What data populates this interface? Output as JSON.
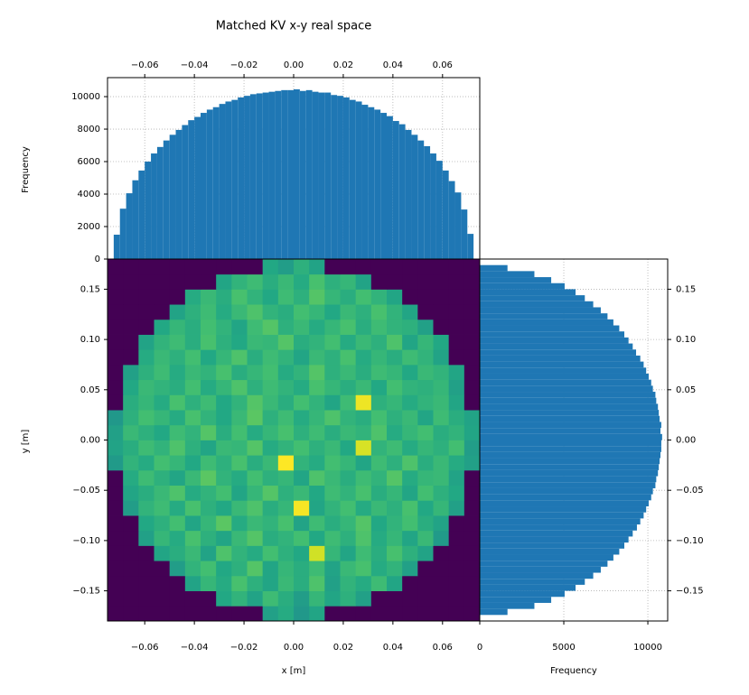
{
  "chart_data": [
    {
      "type": "histogram",
      "orientation": "vertical",
      "title": "Matched KV x-y real space",
      "ylabel": "Frequency",
      "color": "#1f77b4",
      "grid": true,
      "xaxis": "top",
      "yaxis": "left",
      "bins": [
        -0.075,
        -0.0725,
        -0.07,
        -0.0675,
        -0.065,
        -0.0625,
        -0.06,
        -0.0575,
        -0.055,
        -0.0525,
        -0.05,
        -0.0475,
        -0.045,
        -0.0425,
        -0.04,
        -0.0375,
        -0.035,
        -0.0325,
        -0.03,
        -0.0275,
        -0.025,
        -0.0225,
        -0.02,
        -0.0175,
        -0.015,
        -0.0125,
        -0.01,
        -0.0075,
        -0.005,
        -0.0025,
        0,
        0.0025,
        0.005,
        0.0075,
        0.01,
        0.0125,
        0.015,
        0.0175,
        0.02,
        0.0225,
        0.025,
        0.0275,
        0.03,
        0.0325,
        0.035,
        0.0375,
        0.04,
        0.0425,
        0.045,
        0.0475,
        0.05,
        0.0525,
        0.055,
        0.0575,
        0.06,
        0.0625,
        0.065,
        0.0675,
        0.07,
        0.0725,
        0.075
      ],
      "counts": [
        0,
        1500,
        3100,
        4050,
        4850,
        5450,
        6000,
        6500,
        6900,
        7300,
        7650,
        7950,
        8250,
        8550,
        8750,
        9000,
        9200,
        9350,
        9550,
        9700,
        9800,
        9950,
        10050,
        10150,
        10200,
        10250,
        10300,
        10350,
        10400,
        10400,
        10450,
        10350,
        10400,
        10300,
        10250,
        10250,
        10100,
        10050,
        9950,
        9800,
        9700,
        9500,
        9350,
        9200,
        9000,
        8800,
        8500,
        8300,
        7950,
        7650,
        7300,
        6950,
        6500,
        6050,
        5450,
        4800,
        4100,
        3050,
        1550,
        0
      ],
      "xlim": [
        -0.075,
        0.075
      ],
      "xticks": [
        {
          "value": -0.06,
          "label": "−0.06"
        },
        {
          "value": -0.04,
          "label": "−0.04"
        },
        {
          "value": -0.02,
          "label": "−0.02"
        },
        {
          "value": 0,
          "label": "0.00"
        },
        0.02,
        0.04,
        0.06
      ],
      "ylim": [
        0,
        11170
      ],
      "yticks": [
        0,
        2000,
        4000,
        6000,
        8000,
        10000
      ]
    },
    {
      "type": "heatmap",
      "colormap": "viridis",
      "xlabel": "x [m]",
      "ylabel": "y [m]",
      "xaxis": "bottom",
      "yaxis": "left",
      "xlim": [
        -0.075,
        0.075
      ],
      "xticks": [
        {
          "value": -0.06,
          "label": "−0.06"
        },
        {
          "value": -0.04,
          "label": "−0.04"
        },
        {
          "value": -0.02,
          "label": "−0.02"
        },
        {
          "value": 0,
          "label": "0.00"
        },
        0.02,
        0.04,
        0.06
      ],
      "ylim": [
        -0.18,
        0.18
      ],
      "yticks": [
        {
          "value": -0.15,
          "label": "−0.15"
        },
        {
          "value": -0.1,
          "label": "−0.10"
        },
        {
          "value": -0.05,
          "label": "−0.05"
        },
        {
          "value": 0,
          "label": "0.00"
        },
        0.05,
        {
          "value": 0.1,
          "label": "0.10"
        },
        0.15
      ],
      "z": [
        [
          0,
          0,
          0,
          0,
          0,
          0,
          0,
          0,
          0,
          0,
          48,
          52,
          45,
          50,
          0,
          0,
          0,
          0,
          0,
          0,
          0,
          0,
          0,
          0
        ],
        [
          0,
          0,
          0,
          0,
          0,
          0,
          0,
          51,
          55,
          49,
          58,
          53,
          47,
          56,
          50,
          54,
          48,
          0,
          0,
          0,
          0,
          0,
          0,
          0
        ],
        [
          0,
          0,
          0,
          0,
          0,
          49,
          56,
          52,
          60,
          54,
          50,
          57,
          53,
          61,
          48,
          55,
          52,
          58,
          50,
          0,
          0,
          0,
          0,
          0
        ],
        [
          0,
          0,
          0,
          0,
          47,
          55,
          59,
          51,
          54,
          62,
          50,
          56,
          53,
          58,
          49,
          57,
          60,
          52,
          55,
          48,
          0,
          0,
          0,
          0
        ],
        [
          0,
          0,
          0,
          50,
          53,
          57,
          49,
          61,
          55,
          52,
          59,
          54,
          51,
          79,
          56,
          50,
          58,
          53,
          60,
          54,
          49,
          0,
          0,
          0
        ],
        [
          0,
          0,
          48,
          56,
          52,
          60,
          54,
          50,
          57,
          62,
          53,
          55,
          59,
          51,
          58,
          54,
          61,
          52,
          56,
          50,
          57,
          46,
          0,
          0
        ],
        [
          0,
          0,
          51,
          54,
          59,
          50,
          56,
          63,
          52,
          57,
          55,
          60,
          49,
          58,
          53,
          56,
          62,
          51,
          55,
          59,
          53,
          49,
          0,
          0
        ],
        [
          0,
          47,
          55,
          58,
          52,
          60,
          54,
          51,
          57,
          61,
          53,
          56,
          84,
          50,
          55,
          59,
          52,
          57,
          54,
          60,
          51,
          56,
          48,
          0
        ],
        [
          0,
          50,
          53,
          57,
          61,
          52,
          55,
          59,
          50,
          56,
          62,
          54,
          57,
          51,
          58,
          55,
          60,
          53,
          56,
          50,
          59,
          54,
          51,
          0
        ],
        [
          0,
          52,
          58,
          54,
          50,
          57,
          63,
          55,
          52,
          59,
          54,
          56,
          50,
          61,
          57,
          53,
          58,
          55,
          62,
          52,
          56,
          57,
          49,
          0
        ],
        [
          46,
          55,
          52,
          59,
          56,
          51,
          58,
          54,
          60,
          53,
          57,
          85,
          55,
          52,
          59,
          56,
          50,
          58,
          54,
          61,
          53,
          57,
          52,
          48
        ],
        [
          49,
          53,
          58,
          55,
          61,
          54,
          50,
          57,
          56,
          62,
          52,
          55,
          59,
          54,
          57,
          51,
          80,
          55,
          58,
          52,
          56,
          54,
          59,
          47
        ],
        [
          48,
          57,
          54,
          51,
          58,
          55,
          62,
          53,
          59,
          52,
          56,
          60,
          54,
          58,
          53,
          57,
          55,
          61,
          52,
          56,
          59,
          53,
          55,
          50
        ],
        [
          45,
          54,
          59,
          56,
          52,
          60,
          55,
          51,
          57,
          63,
          54,
          58,
          52,
          56,
          61,
          55,
          53,
          59,
          54,
          57,
          50,
          58,
          53,
          49
        ],
        [
          0,
          53,
          56,
          52,
          60,
          54,
          58,
          51,
          55,
          62,
          57,
          53,
          59,
          55,
          50,
          58,
          83,
          54,
          56,
          52,
          55,
          57,
          50,
          0
        ],
        [
          0,
          51,
          57,
          55,
          53,
          59,
          52,
          56,
          61,
          54,
          58,
          55,
          52,
          60,
          56,
          53,
          57,
          51,
          59,
          55,
          54,
          56,
          48,
          0
        ],
        [
          0,
          48,
          54,
          58,
          52,
          57,
          55,
          60,
          53,
          56,
          59,
          52,
          55,
          62,
          54,
          57,
          53,
          58,
          56,
          51,
          57,
          55,
          50,
          0
        ],
        [
          0,
          0,
          52,
          57,
          54,
          59,
          51,
          56,
          61,
          53,
          58,
          55,
          50,
          57,
          54,
          60,
          52,
          56,
          53,
          58,
          55,
          49,
          0,
          0
        ],
        [
          0,
          0,
          49,
          55,
          58,
          53,
          60,
          54,
          51,
          57,
          56,
          62,
          53,
          55,
          59,
          52,
          57,
          54,
          61,
          50,
          56,
          51,
          0,
          0
        ],
        [
          0,
          0,
          0,
          51,
          56,
          53,
          59,
          55,
          50,
          58,
          62,
          54,
          57,
          52,
          56,
          60,
          53,
          58,
          55,
          54,
          48,
          0,
          0,
          0
        ],
        [
          0,
          0,
          0,
          0,
          49,
          54,
          58,
          52,
          57,
          61,
          55,
          53,
          59,
          56,
          51,
          57,
          54,
          60,
          55,
          50,
          0,
          0,
          0,
          0
        ],
        [
          0,
          0,
          0,
          0,
          0,
          52,
          57,
          53,
          60,
          55,
          51,
          58,
          54,
          62,
          56,
          53,
          59,
          55,
          50,
          0,
          0,
          0,
          0,
          0
        ],
        [
          0,
          0,
          0,
          0,
          0,
          0,
          0,
          50,
          55,
          58,
          53,
          57,
          52,
          60,
          54,
          56,
          49,
          0,
          0,
          0,
          0,
          0,
          0,
          0
        ],
        [
          0,
          0,
          0,
          0,
          0,
          0,
          0,
          0,
          0,
          0,
          51,
          47,
          54,
          49,
          0,
          0,
          0,
          0,
          0,
          0,
          0,
          0,
          0,
          0
        ]
      ]
    },
    {
      "type": "histogram",
      "orientation": "horizontal",
      "xlabel": "Frequency",
      "color": "#1f77b4",
      "grid": true,
      "xaxis": "bottom",
      "yaxis": "right",
      "bins": [
        -0.18,
        -0.174,
        -0.168,
        -0.162,
        -0.156,
        -0.15,
        -0.144,
        -0.138,
        -0.132,
        -0.126,
        -0.12,
        -0.114,
        -0.108,
        -0.102,
        -0.096,
        -0.09,
        -0.084,
        -0.078,
        -0.072,
        -0.066,
        -0.06,
        -0.054,
        -0.048,
        -0.042,
        -0.036,
        -0.03,
        -0.024,
        -0.018,
        -0.012,
        -0.006,
        0,
        0.006,
        0.012,
        0.018,
        0.024,
        0.03,
        0.036,
        0.042,
        0.048,
        0.054,
        0.06,
        0.066,
        0.072,
        0.078,
        0.084,
        0.09,
        0.096,
        0.102,
        0.108,
        0.114,
        0.12,
        0.126,
        0.132,
        0.138,
        0.144,
        0.15,
        0.156,
        0.162,
        0.168,
        0.174,
        0.18
      ],
      "counts": [
        0,
        1650,
        3250,
        4250,
        5050,
        5700,
        6250,
        6750,
        7200,
        7600,
        7950,
        8300,
        8600,
        8850,
        9100,
        9350,
        9550,
        9750,
        9900,
        10050,
        10200,
        10300,
        10450,
        10500,
        10600,
        10650,
        10700,
        10750,
        10800,
        10800,
        10850,
        10750,
        10800,
        10700,
        10650,
        10600,
        10500,
        10450,
        10300,
        10200,
        10050,
        9900,
        9750,
        9550,
        9300,
        9100,
        8850,
        8600,
        8300,
        7950,
        7600,
        7200,
        6750,
        6250,
        5700,
        5050,
        4250,
        3250,
        1650,
        0
      ],
      "xlim": [
        0,
        11180
      ],
      "xticks": [
        0,
        5000,
        10000
      ],
      "ylim": [
        -0.18,
        0.18
      ],
      "yticks": [
        {
          "value": -0.15,
          "label": "−0.15"
        },
        {
          "value": -0.1,
          "label": "−0.10"
        },
        {
          "value": -0.05,
          "label": "−0.05"
        },
        {
          "value": 0,
          "label": "0.00"
        },
        0.05,
        {
          "value": 0.1,
          "label": "0.10"
        },
        0.15
      ]
    }
  ]
}
